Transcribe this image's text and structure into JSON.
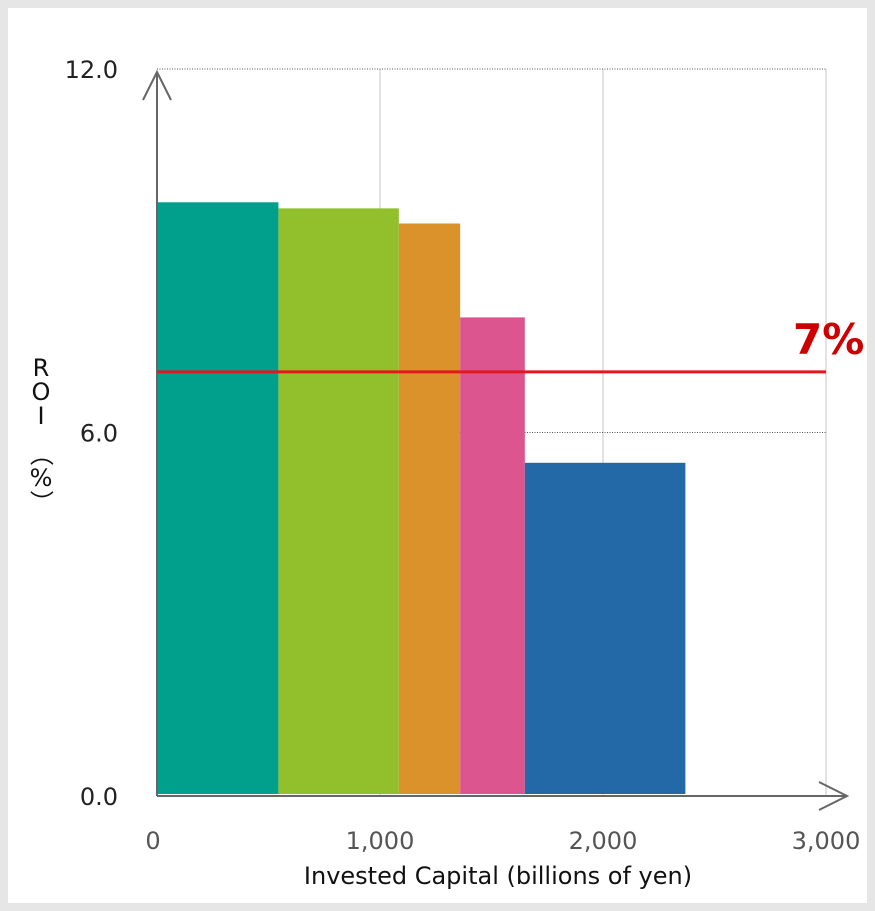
{
  "chart_data": {
    "type": "bar",
    "title": "",
    "xlabel": "Invested Capital (billions of yen)",
    "ylabel_chars": [
      "R",
      "O",
      "I",
      "（",
      "%",
      "）"
    ],
    "xlim": [
      0,
      3000
    ],
    "ylim": [
      0,
      12
    ],
    "xticks": [
      {
        "value": 0,
        "label": "0"
      },
      {
        "value": 1000,
        "label": "1,000"
      },
      {
        "value": 2000,
        "label": "2,000"
      },
      {
        "value": 3000,
        "label": "3,000"
      }
    ],
    "yticks": [
      {
        "value": 0,
        "label": "0.0"
      },
      {
        "value": 6,
        "label": "6.0"
      },
      {
        "value": 12,
        "label": "12.0"
      }
    ],
    "bars": [
      {
        "x_start": 0,
        "x_end": 540,
        "value": 9.8,
        "color": "#00a08c"
      },
      {
        "x_start": 540,
        "x_end": 1080,
        "value": 9.7,
        "color": "#92c02d"
      },
      {
        "x_start": 1080,
        "x_end": 1355,
        "value": 9.45,
        "color": "#db922a"
      },
      {
        "x_start": 1355,
        "x_end": 1645,
        "value": 7.9,
        "color": "#dc558e"
      },
      {
        "x_start": 1645,
        "x_end": 2365,
        "value": 5.5,
        "color": "#2369a7"
      }
    ],
    "reference_line": {
      "value": 7,
      "label": "7%",
      "color": "#e3171e"
    },
    "grid": true
  }
}
